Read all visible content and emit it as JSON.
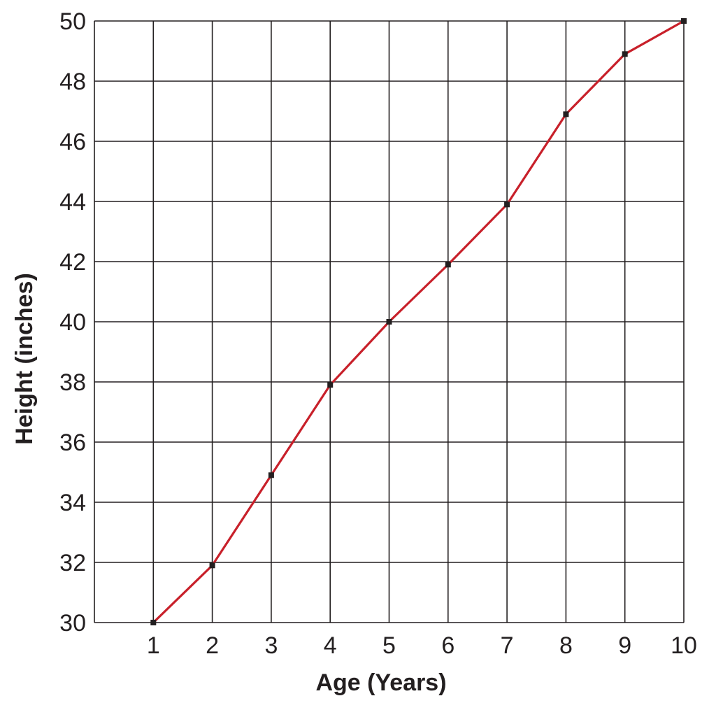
{
  "chart_data": {
    "type": "line",
    "title": "",
    "xlabel": "Age (Years)",
    "ylabel": "Height (inches)",
    "x": [
      1,
      2,
      3,
      4,
      5,
      6,
      7,
      8,
      9,
      10
    ],
    "x_ticks": [
      1,
      2,
      3,
      4,
      5,
      6,
      7,
      8,
      9,
      10
    ],
    "xlim": [
      0,
      10
    ],
    "y_ticks": [
      30,
      32,
      34,
      36,
      38,
      40,
      42,
      44,
      46,
      48,
      50
    ],
    "ylim": [
      30,
      50
    ],
    "grid": true,
    "series": [
      {
        "color": "#c8202a",
        "marker_color": "#231f20",
        "values": [
          30,
          31.9,
          34.9,
          37.9,
          40,
          41.9,
          43.9,
          46.9,
          48.9,
          50
        ]
      }
    ]
  }
}
